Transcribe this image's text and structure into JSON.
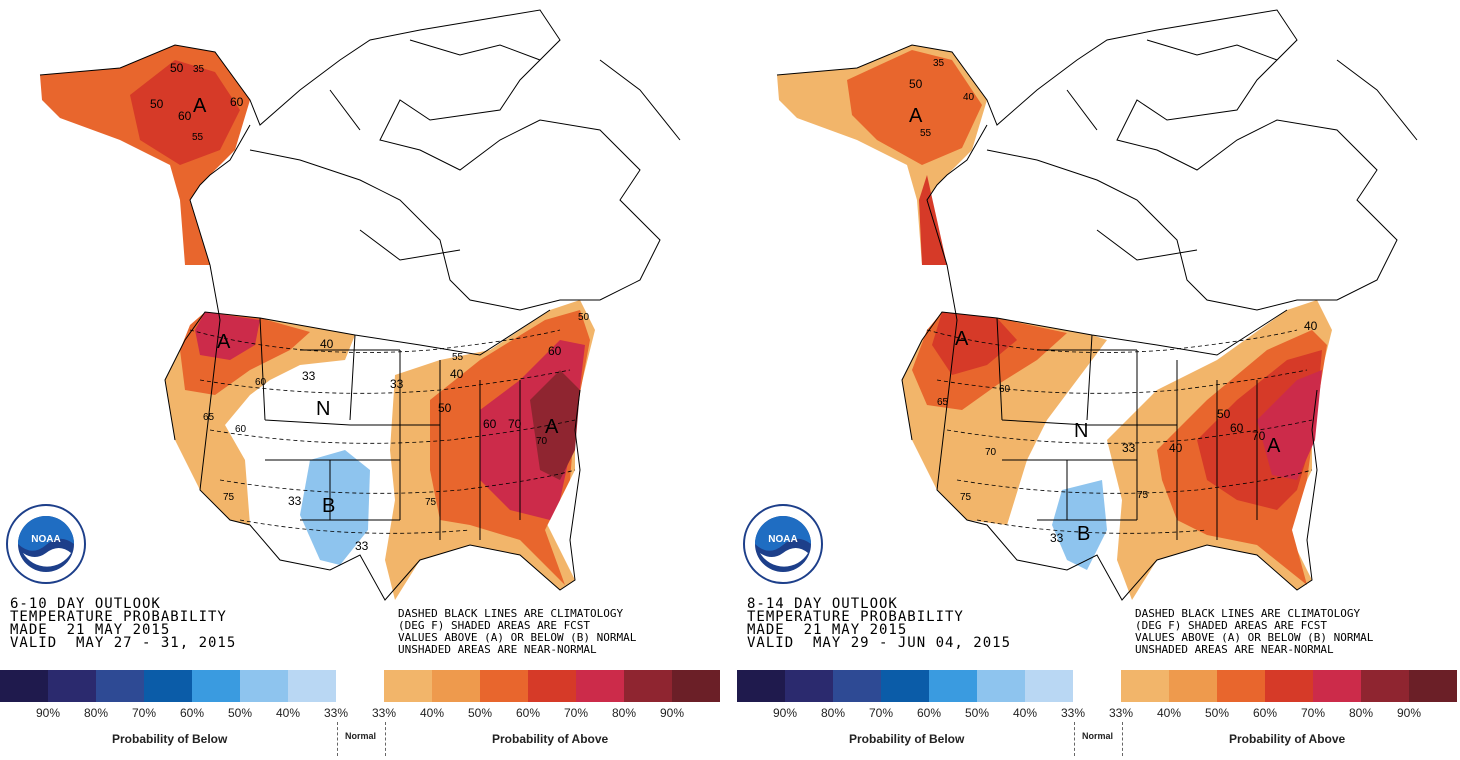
{
  "panels": [
    {
      "id": "6-10",
      "outlook_line1": "6-10 DAY OUTLOOK",
      "outlook_line2": "TEMPERATURE PROBABILITY",
      "outlook_line3": "MADE  21 MAY 2015",
      "outlook_line4": "VALID  MAY 27 - 31, 2015",
      "labels": {
        "alaska_letter": "A",
        "alaska_50a": "50",
        "alaska_35": "35",
        "alaska_50b": "50",
        "alaska_60a": "60",
        "alaska_60b": "60",
        "alaska_55": "55",
        "nw_letter": "A",
        "nw_40": "40",
        "nw_60": "60",
        "nw_65": "65",
        "nw_60b": "60",
        "sw_75": "75",
        "n_letter": "N",
        "b_letter": "B",
        "b_33a": "33",
        "b_33b": "33",
        "c_33": "33",
        "c_33b": "33",
        "e_letter": "A",
        "e_50": "50",
        "e_55": "55",
        "e_40": "40",
        "e_60": "60",
        "e_70": "70",
        "e_75": "75",
        "e_60b": "60",
        "e_70b": "70",
        "e_50b": "50"
      }
    },
    {
      "id": "8-14",
      "outlook_line1": "8-14 DAY OUTLOOK",
      "outlook_line2": "TEMPERATURE PROBABILITY",
      "outlook_line3": "MADE  21 MAY 2015",
      "outlook_line4": "VALID  MAY 29 - JUN 04, 2015",
      "labels": {
        "alaska_letter": "A",
        "alaska_50": "50",
        "alaska_35": "35",
        "alaska_40": "40",
        "alaska_55": "55",
        "nw_letter": "A",
        "nw_60": "60",
        "nw_65": "65",
        "nw_70": "70",
        "sw_75": "75",
        "n_letter": "N",
        "b_letter": "B",
        "b_33": "33",
        "c_33": "33",
        "e_letter": "A",
        "e_40": "40",
        "e_50": "50",
        "e_60": "60",
        "e_70": "70",
        "e_75": "75",
        "e_40b": "40"
      }
    }
  ],
  "legend": {
    "line1": "DASHED BLACK LINES ARE CLIMATOLOGY",
    "line2": "(DEG F) SHADED AREAS ARE FCST",
    "line3": "VALUES ABOVE (A) OR BELOW (B) NORMAL",
    "line4": "UNSHADED AREAS ARE NEAR-NORMAL"
  },
  "logo_text": "NOAA",
  "scale": {
    "colors": [
      "#1f1a4d",
      "#2b2a6e",
      "#2e4a94",
      "#0b5ca8",
      "#3a9be0",
      "#8ec4ee",
      "#b9d7f3",
      "#ffffff",
      "#f2b56a",
      "#ee9a4d",
      "#e8662d",
      "#d63a28",
      "#cc2b4a",
      "#8f2530",
      "#6b1f27"
    ],
    "ticks": [
      "90%",
      "80%",
      "70%",
      "60%",
      "50%",
      "40%",
      "33%",
      "33%",
      "40%",
      "50%",
      "60%",
      "70%",
      "80%",
      "90%"
    ],
    "below_caption": "Probability of Below",
    "normal_caption": "Normal",
    "above_caption": "Probability of Above"
  }
}
